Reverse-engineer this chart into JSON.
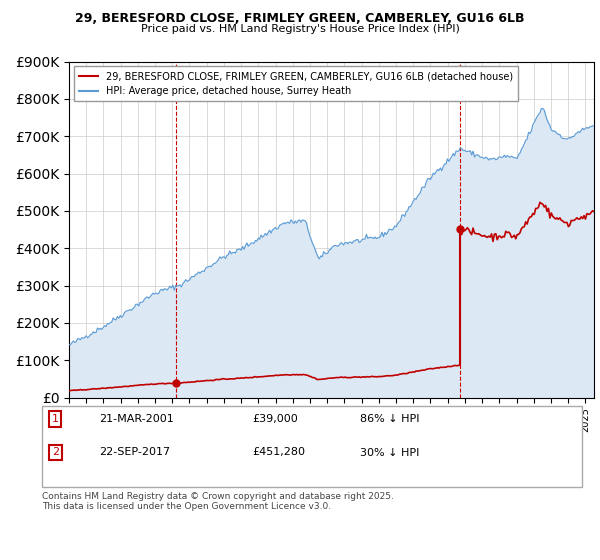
{
  "title1": "29, BERESFORD CLOSE, FRIMLEY GREEN, CAMBERLEY, GU16 6LB",
  "title2": "Price paid vs. HM Land Registry's House Price Index (HPI)",
  "legend_red": "29, BERESFORD CLOSE, FRIMLEY GREEN, CAMBERLEY, GU16 6LB (detached house)",
  "legend_blue": "HPI: Average price, detached house, Surrey Heath",
  "annotation1_num": "1",
  "annotation1_date": "21-MAR-2001",
  "annotation1_price": "£39,000",
  "annotation1_hpi": "86% ↓ HPI",
  "annotation2_num": "2",
  "annotation2_date": "22-SEP-2017",
  "annotation2_price": "£451,280",
  "annotation2_hpi": "30% ↓ HPI",
  "footer": "Contains HM Land Registry data © Crown copyright and database right 2025.\nThis data is licensed under the Open Government Licence v3.0.",
  "purchase1_year": 2001.22,
  "purchase1_price": 39000,
  "purchase2_year": 2017.73,
  "purchase2_price": 451280,
  "hpi_color": "#5b9bd5",
  "hpi_fill_color": "#dce9f5",
  "purchase_color": "#c00000",
  "vline_color": "#cc0000",
  "background_color": "#ffffff",
  "ylim_min": 0,
  "ylim_max": 900000,
  "xlim_min": 1995,
  "xlim_max": 2025.5
}
